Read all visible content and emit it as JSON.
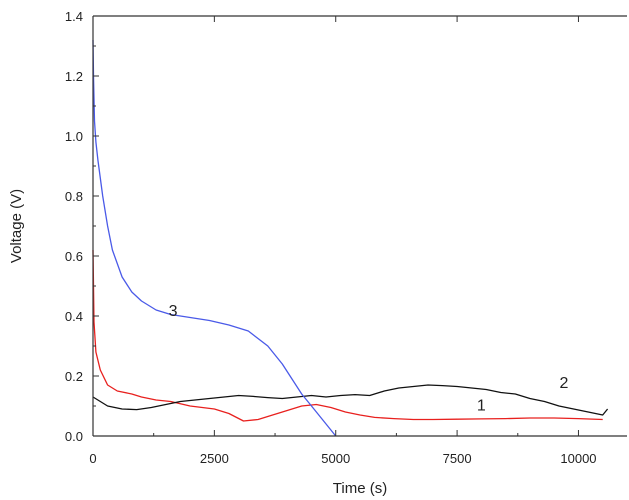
{
  "chart_data": {
    "type": "line",
    "xlabel": "Time (s)",
    "ylabel": "Voltage (V)",
    "xlim": [
      0,
      11000
    ],
    "ylim": [
      0,
      1.4
    ],
    "x_ticks": [
      0,
      2500,
      5000,
      7500,
      10000
    ],
    "x_tick_labels": [
      "0",
      "2500",
      "5000",
      "7500",
      "10000"
    ],
    "y_ticks": [
      0.0,
      0.2,
      0.4,
      0.6,
      0.8,
      1.0,
      1.2,
      1.4
    ],
    "y_tick_labels": [
      "0.0",
      "0.2",
      "0.4",
      "0.6",
      "0.8",
      "1.0",
      "1.2",
      "1.4"
    ],
    "grid": false,
    "series": [
      {
        "name": "1",
        "color": "#e8201e",
        "label_at": [
          8000,
          0.085
        ],
        "x": [
          0,
          20,
          60,
          150,
          300,
          500,
          800,
          1000,
          1300,
          1600,
          2000,
          2500,
          2800,
          3100,
          3400,
          3700,
          4000,
          4300,
          4600,
          4900,
          5200,
          5500,
          5800,
          6200,
          6600,
          7000,
          7500,
          8000,
          8500,
          9000,
          9500,
          10000,
          10500
        ],
        "y": [
          0.62,
          0.38,
          0.28,
          0.22,
          0.17,
          0.15,
          0.14,
          0.13,
          0.12,
          0.115,
          0.1,
          0.09,
          0.075,
          0.05,
          0.055,
          0.07,
          0.085,
          0.1,
          0.105,
          0.095,
          0.08,
          0.07,
          0.062,
          0.058,
          0.055,
          0.055,
          0.056,
          0.057,
          0.058,
          0.06,
          0.06,
          0.058,
          0.055
        ]
      },
      {
        "name": "2",
        "color": "#111111",
        "label_at": [
          9700,
          0.16
        ],
        "x": [
          0,
          100,
          300,
          600,
          900,
          1200,
          1500,
          1800,
          2100,
          2400,
          2700,
          3000,
          3300,
          3600,
          3900,
          4200,
          4500,
          4800,
          5100,
          5400,
          5700,
          6000,
          6300,
          6600,
          6900,
          7200,
          7500,
          7800,
          8100,
          8400,
          8700,
          9000,
          9300,
          9600,
          9900,
          10200,
          10500,
          10600
        ],
        "y": [
          0.13,
          0.12,
          0.1,
          0.09,
          0.088,
          0.095,
          0.105,
          0.115,
          0.12,
          0.125,
          0.13,
          0.135,
          0.132,
          0.128,
          0.125,
          0.13,
          0.135,
          0.13,
          0.135,
          0.138,
          0.135,
          0.15,
          0.16,
          0.165,
          0.17,
          0.168,
          0.165,
          0.16,
          0.155,
          0.145,
          0.14,
          0.125,
          0.115,
          0.1,
          0.09,
          0.08,
          0.07,
          0.09
        ]
      },
      {
        "name": "3",
        "color": "#4a5ae8",
        "label_at": [
          1650,
          0.4
        ],
        "x": [
          0,
          10,
          30,
          60,
          100,
          200,
          300,
          400,
          600,
          800,
          1000,
          1300,
          1600,
          2000,
          2400,
          2800,
          3200,
          3600,
          3900,
          4100,
          4300,
          4500,
          4700,
          4900,
          5000
        ],
        "y": [
          1.32,
          1.2,
          1.05,
          0.98,
          0.92,
          0.8,
          0.7,
          0.62,
          0.53,
          0.48,
          0.45,
          0.42,
          0.405,
          0.395,
          0.385,
          0.37,
          0.35,
          0.3,
          0.24,
          0.19,
          0.14,
          0.1,
          0.06,
          0.02,
          0.0
        ]
      }
    ]
  }
}
